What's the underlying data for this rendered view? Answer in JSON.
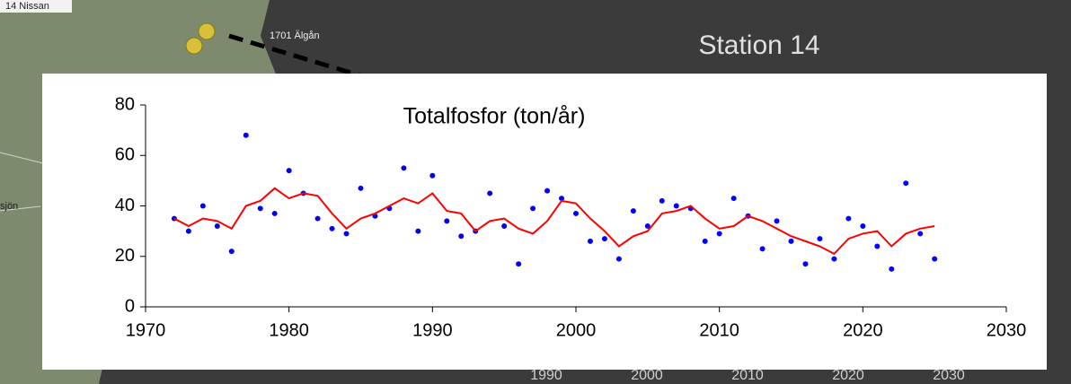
{
  "background": {
    "map_labels": [
      "14 Nissan",
      "1701 Älgån",
      "sjön"
    ],
    "heading": "Station 14",
    "hidden_ticks": [
      1990,
      2000,
      2010,
      2020,
      2030
    ]
  },
  "chart_data": {
    "type": "line",
    "title": "Totalfosfor (ton/år)",
    "x": [
      1972,
      1973,
      1974,
      1975,
      1976,
      1977,
      1978,
      1979,
      1980,
      1981,
      1982,
      1983,
      1984,
      1985,
      1986,
      1987,
      1988,
      1989,
      1990,
      1991,
      1992,
      1993,
      1994,
      1995,
      1996,
      1997,
      1998,
      1999,
      2000,
      2001,
      2002,
      2003,
      2004,
      2005,
      2006,
      2007,
      2008,
      2009,
      2010,
      2011,
      2012,
      2013,
      2014,
      2015,
      2016,
      2017,
      2018,
      2019,
      2020,
      2021,
      2022,
      2023,
      2024,
      2025
    ],
    "series": [
      {
        "kind": "scatter",
        "color": "#0000ff",
        "values": [
          35,
          30,
          40,
          32,
          22,
          68,
          39,
          37,
          54,
          45,
          35,
          31,
          29,
          47,
          36,
          39,
          55,
          30,
          52,
          34,
          28,
          30,
          45,
          32,
          17,
          39,
          46,
          43,
          37,
          26,
          27,
          19,
          38,
          32,
          42,
          40,
          39,
          26,
          29,
          43,
          36,
          23,
          34,
          26,
          17,
          27,
          19,
          35,
          32,
          24,
          15,
          49,
          29,
          19
        ]
      },
      {
        "kind": "line",
        "color": "#ff0000",
        "values": [
          35,
          32,
          35,
          34,
          31,
          40,
          42,
          47,
          43,
          45,
          44,
          37,
          31,
          35,
          37,
          40,
          43,
          41,
          45,
          38,
          37,
          30,
          34,
          35,
          31,
          29,
          34,
          42,
          41,
          35,
          30,
          24,
          28,
          30,
          37,
          38,
          40,
          35,
          31,
          32,
          36,
          34,
          31,
          28,
          26,
          24,
          21,
          27,
          29,
          30,
          24,
          29,
          31,
          32
        ]
      }
    ],
    "xlim": [
      1970,
      2030
    ],
    "xticks": [
      1970,
      1980,
      1990,
      2000,
      2010,
      2020,
      2030
    ],
    "ylim": [
      0,
      80
    ],
    "yticks": [
      0,
      20,
      40,
      60,
      80
    ],
    "grid": false
  }
}
